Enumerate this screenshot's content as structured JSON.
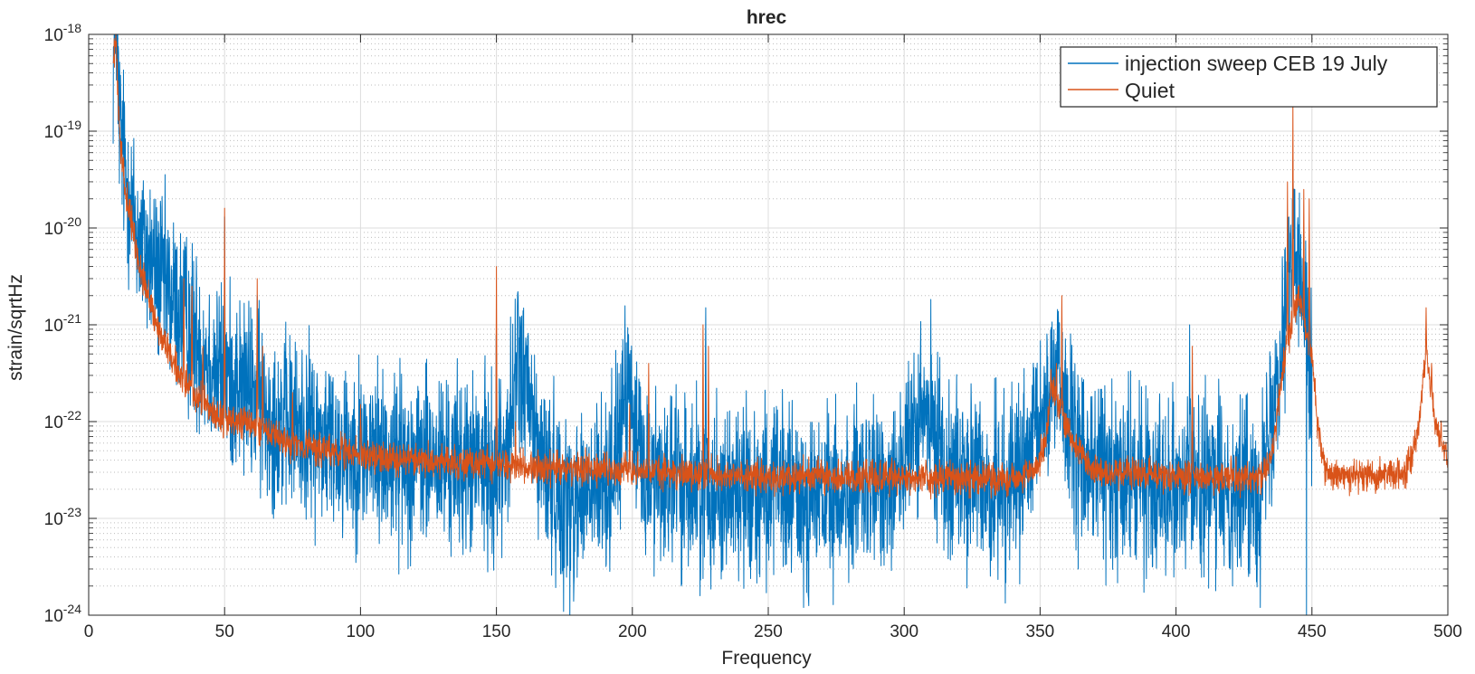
{
  "chart_data": {
    "type": "line",
    "title": "hrec",
    "xlabel": "Frequency",
    "ylabel": "strain/sqrtHz",
    "xlim": [
      0,
      500
    ],
    "ylim": [
      1e-24,
      1e-18
    ],
    "yscale": "log",
    "grid": true,
    "minor_grid": true,
    "legend_location": "top-right",
    "x_ticks": [
      0,
      50,
      100,
      150,
      200,
      250,
      300,
      350,
      400,
      450,
      500
    ],
    "y_ticks": [
      {
        "value": 1e-24,
        "mantissa": "10",
        "exponent": "-24"
      },
      {
        "value": 1e-23,
        "mantissa": "10",
        "exponent": "-23"
      },
      {
        "value": 1e-22,
        "mantissa": "10",
        "exponent": "-22"
      },
      {
        "value": 1e-21,
        "mantissa": "10",
        "exponent": "-21"
      },
      {
        "value": 1e-20,
        "mantissa": "10",
        "exponent": "-20"
      },
      {
        "value": 1e-19,
        "mantissa": "10",
        "exponent": "-19"
      },
      {
        "value": 1e-18,
        "mantissa": "10",
        "exponent": "-18"
      }
    ],
    "series": [
      {
        "name": "injection sweep CEB 19 July",
        "color": "#0072BD",
        "noise": 1.0,
        "spikes": [
          [
            10,
            9e-19
          ],
          [
            15,
            3e-20
          ],
          [
            50,
            1.3e-20
          ],
          [
            62,
            2e-21
          ],
          [
            150,
            2.5e-21
          ],
          [
            158,
            1e-21
          ],
          [
            199,
            5e-22
          ],
          [
            227,
            1.5e-21
          ],
          [
            308,
            1.3e-22
          ],
          [
            357,
            7e-22
          ],
          [
            405,
            1e-21
          ],
          [
            441,
            5e-21
          ],
          [
            443,
            5e-20
          ],
          [
            448,
            1e-20
          ]
        ],
        "dips": [
          [
            66,
            5e-23
          ],
          [
            112,
            8e-24
          ],
          [
            150,
            1.5e-23
          ],
          [
            177,
            8e-25
          ],
          [
            218,
            2e-24
          ],
          [
            263,
            1.2e-24
          ],
          [
            333,
            4e-24
          ],
          [
            364,
            3e-24
          ],
          [
            389,
            6e-24
          ],
          [
            420,
            3e-24
          ],
          [
            431,
            1.2e-24
          ],
          [
            448,
            7e-25
          ]
        ],
        "points": [
          [
            9,
            5e-19
          ],
          [
            10,
            9e-19
          ],
          [
            11,
            2e-19
          ],
          [
            12,
            8e-20
          ],
          [
            14,
            3e-20
          ],
          [
            16,
            1.5e-20
          ],
          [
            18,
            9e-21
          ],
          [
            20,
            6e-21
          ],
          [
            25,
            3.5e-21
          ],
          [
            30,
            2e-21
          ],
          [
            35,
            1.2e-21
          ],
          [
            40,
            7e-22
          ],
          [
            45,
            4e-22
          ],
          [
            50,
            3e-22
          ],
          [
            55,
            2.5e-22
          ],
          [
            60,
            2e-22
          ],
          [
            65,
            1.3e-22
          ],
          [
            70,
            1e-22
          ],
          [
            80,
            8e-23
          ],
          [
            90,
            6e-23
          ],
          [
            100,
            5e-23
          ],
          [
            120,
            4e-23
          ],
          [
            145,
            3.5e-23
          ],
          [
            150,
            3e-23
          ],
          [
            155,
            8e-23
          ],
          [
            158,
            5e-22
          ],
          [
            162,
            1.5e-22
          ],
          [
            166,
            4e-23
          ],
          [
            175,
            1.5e-23
          ],
          [
            190,
            2e-23
          ],
          [
            198,
            1.5e-22
          ],
          [
            205,
            3e-23
          ],
          [
            230,
            2e-23
          ],
          [
            250,
            2e-23
          ],
          [
            270,
            1.5e-23
          ],
          [
            290,
            2e-23
          ],
          [
            300,
            4e-23
          ],
          [
            308,
            1.2e-22
          ],
          [
            315,
            4e-23
          ],
          [
            330,
            2e-23
          ],
          [
            345,
            3e-23
          ],
          [
            352,
            1.5e-22
          ],
          [
            357,
            4e-22
          ],
          [
            362,
            5e-23
          ],
          [
            380,
            2.5e-23
          ],
          [
            400,
            2.5e-23
          ],
          [
            420,
            2e-23
          ],
          [
            432,
            2.5e-23
          ],
          [
            438,
            5e-22
          ],
          [
            442,
            5e-21
          ],
          [
            448,
            2e-21
          ],
          [
            450,
            2e-22
          ]
        ]
      },
      {
        "name": "Quiet",
        "color": "#D95319",
        "noise": 0.18,
        "spikes": [
          [
            10,
            8e-19
          ],
          [
            33,
            2.5e-22
          ],
          [
            35,
            3e-21
          ],
          [
            38,
            2.5e-21
          ],
          [
            42,
            6e-22
          ],
          [
            50,
            1.6e-20
          ],
          [
            62,
            3e-21
          ],
          [
            64,
            6e-22
          ],
          [
            75,
            2e-22
          ],
          [
            100,
            1.5e-22
          ],
          [
            150,
            4e-21
          ],
          [
            157,
            1e-22
          ],
          [
            199,
            1.5e-22
          ],
          [
            206,
            4e-22
          ],
          [
            226,
            1e-21
          ],
          [
            228,
            6e-22
          ],
          [
            308,
            4e-23
          ],
          [
            356,
            4e-22
          ],
          [
            358,
            2e-21
          ],
          [
            406,
            6e-22
          ],
          [
            441,
            3e-20
          ],
          [
            443,
            2e-19
          ],
          [
            447,
            2.5e-20
          ],
          [
            449,
            2e-20
          ],
          [
            491,
            3e-22
          ],
          [
            492,
            1.5e-21
          ],
          [
            494,
            4e-22
          ]
        ],
        "dips": [],
        "points": [
          [
            9,
            5e-19
          ],
          [
            10,
            8e-19
          ],
          [
            11,
            1.5e-19
          ],
          [
            12,
            6e-20
          ],
          [
            14,
            2e-20
          ],
          [
            16,
            1e-20
          ],
          [
            18,
            5e-21
          ],
          [
            20,
            3e-21
          ],
          [
            25,
            1e-21
          ],
          [
            30,
            5e-22
          ],
          [
            35,
            2.5e-22
          ],
          [
            40,
            1.8e-22
          ],
          [
            45,
            1.3e-22
          ],
          [
            50,
            1e-22
          ],
          [
            55,
            1e-22
          ],
          [
            60,
            9e-23
          ],
          [
            65,
            8e-23
          ],
          [
            70,
            6.5e-23
          ],
          [
            80,
            5.5e-23
          ],
          [
            90,
            5e-23
          ],
          [
            100,
            4.5e-23
          ],
          [
            120,
            4e-23
          ],
          [
            145,
            3.8e-23
          ],
          [
            155,
            3.5e-23
          ],
          [
            170,
            3.3e-23
          ],
          [
            190,
            3.2e-23
          ],
          [
            210,
            3e-23
          ],
          [
            240,
            2.8e-23
          ],
          [
            270,
            2.7e-23
          ],
          [
            300,
            2.6e-23
          ],
          [
            340,
            2.6e-23
          ],
          [
            348,
            3e-23
          ],
          [
            352,
            6e-23
          ],
          [
            354,
            2.5e-22
          ],
          [
            362,
            6e-23
          ],
          [
            370,
            3e-23
          ],
          [
            400,
            2.7e-23
          ],
          [
            430,
            2.6e-23
          ],
          [
            435,
            4e-23
          ],
          [
            440,
            5e-22
          ],
          [
            445,
            2e-21
          ],
          [
            450,
            5e-22
          ],
          [
            452,
            1e-22
          ],
          [
            455,
            3e-23
          ],
          [
            470,
            2.7e-23
          ],
          [
            485,
            3e-23
          ],
          [
            489,
            8e-23
          ],
          [
            492,
            5e-22
          ],
          [
            496,
            8e-23
          ],
          [
            500,
            4e-23
          ]
        ]
      }
    ]
  }
}
